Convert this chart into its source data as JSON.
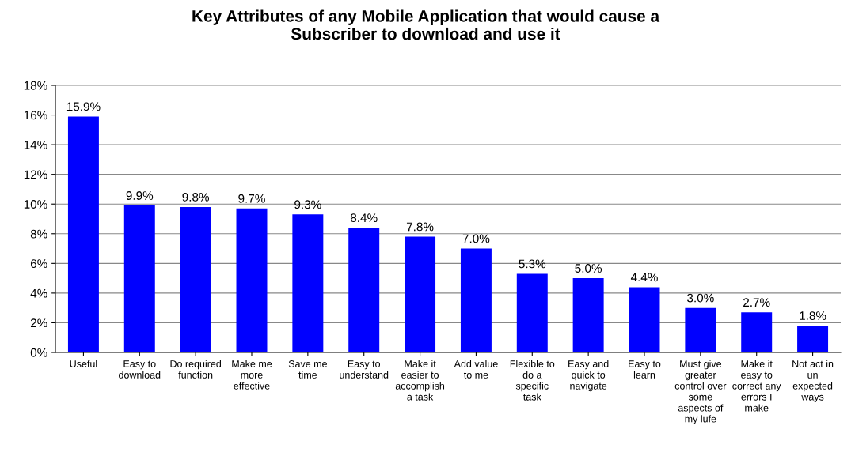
{
  "chart_data": {
    "type": "bar",
    "title": "Key Attributes of any Mobile Application that would cause a\nSubscriber to download and use it",
    "categories": [
      "Useful",
      "Easy to\ndownload",
      "Do required\nfunction",
      "Make me\nmore\neffective",
      "Save me\ntime",
      "Easy to\nunderstand",
      "Make it\neasier to\naccomplish\na task",
      "Add value\nto me",
      "Flexible to\ndo a\nspecific\ntask",
      "Easy and\nquick to\nnavigate",
      "Easy to\nlearn",
      "Must give\ngreater\ncontrol over\nsome\naspects of\nmy lufe",
      "Make it\neasy to\ncorrect any\nerrors I\nmake",
      "Not act in\nun\nexpected\nways"
    ],
    "values": [
      15.9,
      9.9,
      9.8,
      9.7,
      9.3,
      8.4,
      7.8,
      7.0,
      5.3,
      5.0,
      4.4,
      3.0,
      2.7,
      1.8
    ],
    "value_labels": [
      "15.9%",
      "9.9%",
      "9.8%",
      "9.7%",
      "9.3%",
      "8.4%",
      "7.8%",
      "7.0%",
      "5.3%",
      "5.0%",
      "4.4%",
      "3.0%",
      "2.7%",
      "1.8%"
    ],
    "color": "#0000ff",
    "ylim": [
      0,
      18
    ],
    "yticks": [
      {
        "value": 0,
        "label": "0%"
      },
      {
        "value": 2,
        "label": "2%"
      },
      {
        "value": 4,
        "label": "4%"
      },
      {
        "value": 6,
        "label": "6%"
      },
      {
        "value": 8,
        "label": "8%"
      },
      {
        "value": 10,
        "label": "10%"
      },
      {
        "value": 12,
        "label": "12%"
      },
      {
        "value": 14,
        "label": "14%"
      },
      {
        "value": 16,
        "label": "16%"
      },
      {
        "value": 18,
        "label": "18%"
      }
    ],
    "grid": "y",
    "legend": false
  }
}
